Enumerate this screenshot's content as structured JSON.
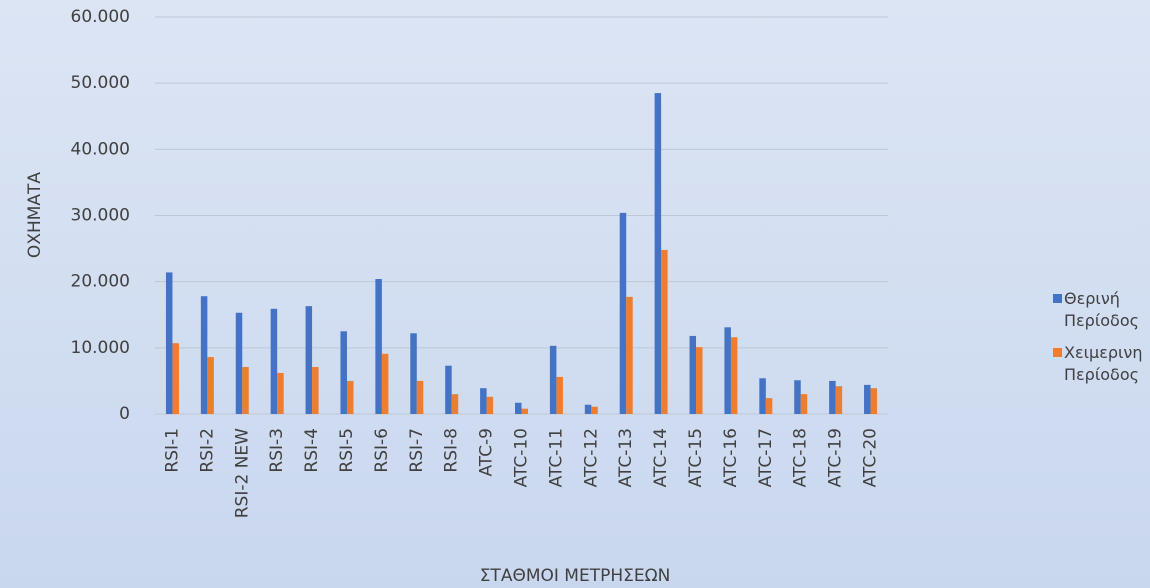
{
  "chart_data": {
    "type": "bar",
    "categories": [
      "RSI-1",
      "RSI-2",
      "RSI-2 NEW",
      "RSI-3",
      "RSI-4",
      "RSI-5",
      "RSI-6",
      "RSI-7",
      "RSI-8",
      "ATC-9",
      "ATC-10",
      "ATC-11",
      "ATC-12",
      "ATC-13",
      "ATC-14",
      "ATC-15",
      "ATC-16",
      "ATC-17",
      "ATC-18",
      "ATC-19",
      "ATC-20"
    ],
    "series": [
      {
        "name": "Θερινή Περίοδος",
        "color": "#4472c4",
        "values": [
          21400,
          17800,
          15300,
          15900,
          16300,
          12500,
          20400,
          12200,
          7300,
          3900,
          1700,
          10300,
          1400,
          30400,
          48500,
          11800,
          13100,
          5400,
          5100,
          5000,
          4400
        ]
      },
      {
        "name": "Χειμερινη Περίοδος",
        "color": "#ed7d31",
        "values": [
          10700,
          8600,
          7100,
          6200,
          7100,
          5000,
          9100,
          5000,
          3000,
          2600,
          800,
          5600,
          1100,
          17700,
          24800,
          10100,
          11600,
          2400,
          3000,
          4200,
          3900
        ]
      }
    ],
    "ylim": [
      0,
      60000
    ],
    "yticks": [
      0,
      {
        "value": 10000,
        "label": "10.000"
      },
      {
        "value": 20000,
        "label": "20.000"
      },
      {
        "value": 30000,
        "label": "30.000"
      },
      {
        "value": 40000,
        "label": "40.000"
      },
      {
        "value": 50000,
        "label": "50.000"
      },
      {
        "value": 60000,
        "label": "60.000"
      }
    ],
    "y_label": "ΟΧΗΜΑΤΑ",
    "x_label": "ΣΤΑΘΜΟΙ ΜΕΤΡΗΣΕΩΝ",
    "grid": true,
    "legend": "right"
  }
}
